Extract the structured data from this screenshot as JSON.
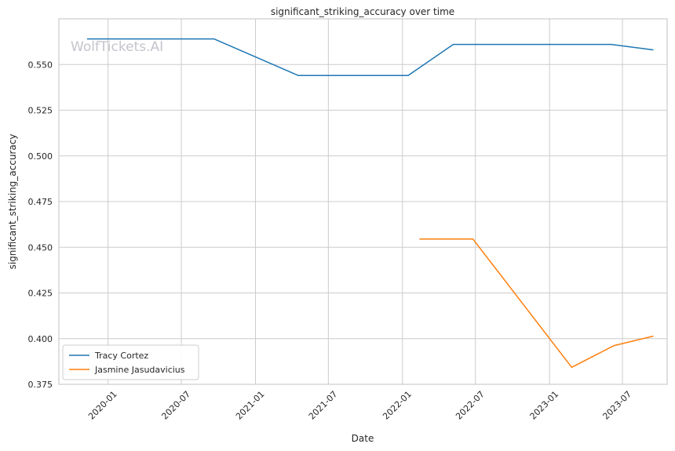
{
  "chart_data": {
    "type": "line",
    "title": "significant_striking_accuracy over time",
    "xlabel": "Date",
    "ylabel": "significant_striking_accuracy",
    "watermark": "WolfTickets.AI",
    "xlim": [
      "2019-09-01",
      "2023-10-20"
    ],
    "ylim": [
      0.375,
      0.575
    ],
    "x_ticks": [
      "2020-01-01",
      "2020-07-01",
      "2021-01-01",
      "2021-07-01",
      "2022-01-01",
      "2022-07-01",
      "2023-01-01",
      "2023-07-01"
    ],
    "x_tick_labels": [
      "2020-01",
      "2020-07",
      "2021-01",
      "2021-07",
      "2022-01",
      "2022-07",
      "2023-01",
      "2023-07"
    ],
    "y_ticks": [
      0.375,
      0.4,
      0.425,
      0.45,
      0.475,
      0.5,
      0.525,
      0.55
    ],
    "y_tick_labels": [
      "0.375",
      "0.400",
      "0.425",
      "0.450",
      "0.475",
      "0.500",
      "0.525",
      "0.550"
    ],
    "grid": true,
    "legend_position": "lower-left",
    "series": [
      {
        "name": "Tracy Cortez",
        "color": "#1f77b4",
        "points": [
          {
            "x": "2019-11-10",
            "y": 0.564
          },
          {
            "x": "2020-09-20",
            "y": 0.564
          },
          {
            "x": "2021-04-17",
            "y": 0.544
          },
          {
            "x": "2022-01-15",
            "y": 0.544
          },
          {
            "x": "2022-05-07",
            "y": 0.561
          },
          {
            "x": "2023-06-03",
            "y": 0.561
          },
          {
            "x": "2023-09-16",
            "y": 0.558
          }
        ]
      },
      {
        "name": "Jasmine Jasudavicius",
        "color": "#ff7f0e",
        "points": [
          {
            "x": "2022-02-12",
            "y": 0.4545
          },
          {
            "x": "2022-06-25",
            "y": 0.4545
          },
          {
            "x": "2023-02-25",
            "y": 0.3843
          },
          {
            "x": "2023-06-10",
            "y": 0.3962
          },
          {
            "x": "2023-09-16",
            "y": 0.4014
          }
        ]
      }
    ]
  }
}
